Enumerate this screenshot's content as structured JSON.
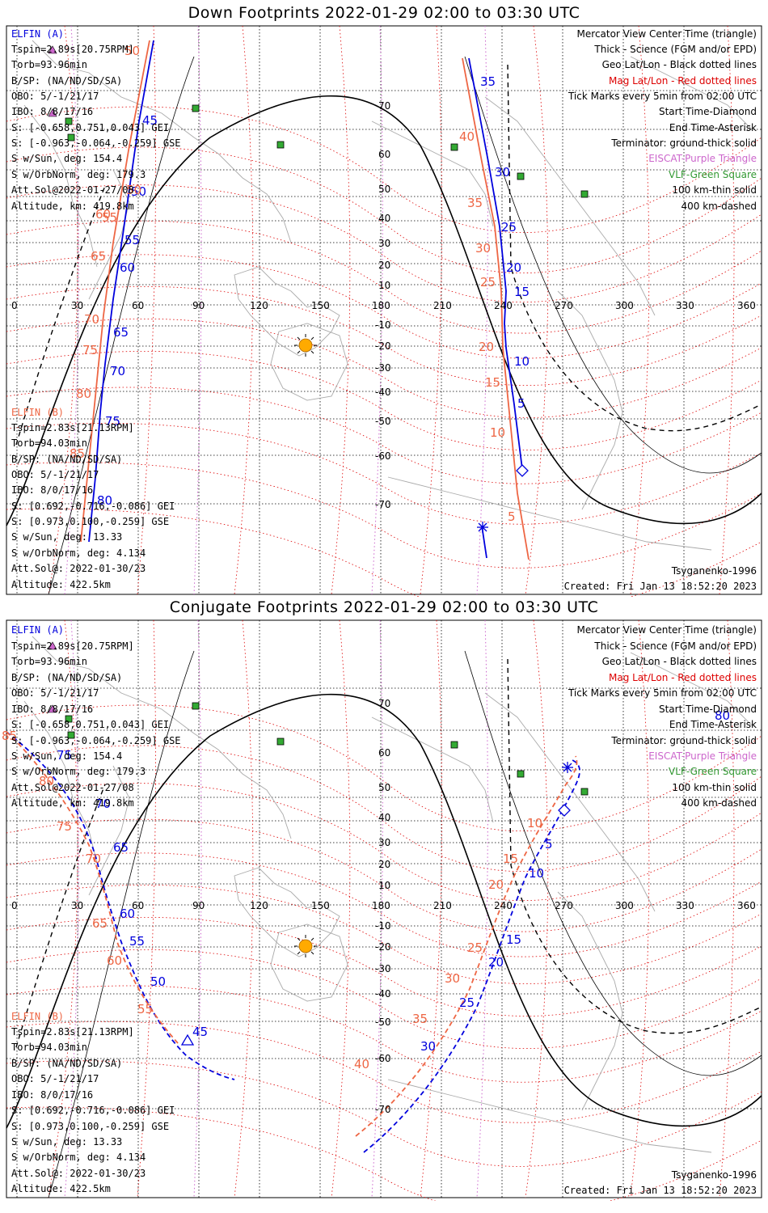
{
  "colors": {
    "elfin_a": "#0000dd",
    "elfin_b": "#ee6644",
    "mag_grid": "#dd0000",
    "geo_grid": "#000000",
    "eiscat": "#cc66cc",
    "vlf": "#339933",
    "sun": "#ffaa00",
    "coast": "#aaaaaa"
  },
  "panels": [
    {
      "title": "Down Footprints 2022-01-29 02:00 to 03:30 UTC",
      "elfin_a": {
        "name": "ELFIN (A)",
        "lines": [
          "Tspin=2.89s[20.75RPM]",
          "Torb=93.96min",
          "B/SP: (NA/ND/SD/SA)",
          "OBO: 5/-1/21/17",
          "IBO: 8/8/17/16",
          "S: [-0.658,0.751,0.043] GEI",
          "S: [-0.963,-0.064,-0.259] GSE",
          "S w/Sun, deg: 154.4",
          "S w/OrbNorm, deg: 179.3",
          "Att.Sol@2022-01-27/08",
          "Altitude, km: 419.8km"
        ]
      },
      "elfin_b": {
        "name": "ELFIN (B)",
        "lines": [
          "Tspin=2.83s[21.13RPM]",
          "Torb=94.03min",
          "B/SP: (NA/ND/SD/SA)",
          "OBO: 5/-1/21/17",
          "IBO: 8/0/17/16",
          "S: [0.692,-0.716,-0.086] GEI",
          "S: [0.973,0.100,-0.259] GSE",
          "S w/Sun, deg: 13.33",
          "S w/OrbNorm, deg: 4.134",
          "Att.Sol@: 2022-01-30/23",
          "Altitude: 422.5km"
        ]
      },
      "legend": [
        "Mercator View Center Time (triangle)",
        "Thick - Science (FGM and/or EPD)",
        "Geo Lat/Lon - Black dotted lines",
        "Mag Lat/Lon - Red dotted lines",
        "Tick Marks every 5min from 02:00 UTC",
        "Start Time-Diamond",
        "End Time-Asterisk",
        "Terminator: ground-thick solid",
        "EISCAT-Purple Triangle",
        "VLF-Green Square",
        "100 km-thin solid",
        "400 km-dashed"
      ],
      "model": "Tsyganenko-1996",
      "created": "Created: Fri Jan 13 18:52:20 2023",
      "track_a_labels": [
        "35",
        "30",
        "25",
        "20",
        "15",
        "10",
        "5",
        "45",
        "50",
        "55",
        "60",
        "65",
        "70",
        "75",
        "80"
      ],
      "track_b_labels": [
        "40",
        "35",
        "30",
        "25",
        "20",
        "15",
        "10",
        "5",
        "50",
        "55",
        "60",
        "65",
        "70",
        "75",
        "80",
        "85"
      ]
    },
    {
      "title": "Conjugate Footprints 2022-01-29 02:00 to 03:30 UTC",
      "elfin_a": {
        "name": "ELFIN (A)",
        "lines": [
          "Tspin=2.89s[20.75RPM]",
          "Torb=93.96min",
          "B/SP: (NA/ND/SD/SA)",
          "OBO: 5/-1/21/17",
          "IBO: 8/8/17/16",
          "S: [-0.658,0.751,0.043] GEI",
          "S: [-0.963,-0.064,-0.259] GSE",
          "S w/Sun, deg: 154.4",
          "S w/OrbNorm, deg: 179.3",
          "Att.Sol@2022-01-27/08",
          "Altitude, km: 419.8km"
        ]
      },
      "elfin_b": {
        "name": "ELFIN (B)",
        "lines": [
          "Tspin=2.83s[21.13RPM]",
          "Torb=94.03min",
          "B/SP: (NA/ND/SD/SA)",
          "OBO: 5/-1/21/17",
          "IBO: 8/0/17/16",
          "S: [0.692,-0.716,-0.086] GEI",
          "S: [0.973,0.100,-0.259] GSE",
          "S w/Sun, deg: 13.33",
          "S w/OrbNorm, deg: 4.134",
          "Att.Sol@: 2022-01-30/23",
          "Altitude: 422.5km"
        ]
      },
      "legend": [
        "Mercator View Center Time (triangle)",
        "Thick - Science (FGM and/or EPD)",
        "Geo Lat/Lon - Black dotted lines",
        "Mag Lat/Lon - Red dotted lines",
        "Tick Marks every 5min from 02:00 UTC",
        "Start Time-Diamond",
        "End Time-Asterisk",
        "Terminator: ground-thick solid",
        "EISCAT-Purple Triangle",
        "VLF-Green Square",
        "100 km-thin solid",
        "400 km-dashed"
      ],
      "model": "Tsyganenko-1996",
      "created": "Created: Fri Jan 13 18:52:20 2023"
    }
  ],
  "lon_ticks": [
    "0",
    "30",
    "60",
    "90",
    "120",
    "150",
    "180",
    "210",
    "240",
    "270",
    "300",
    "330",
    "360"
  ],
  "lat_ticks": [
    "70",
    "60",
    "50",
    "40",
    "30",
    "20",
    "10",
    "-10",
    "-20",
    "-30",
    "-40",
    "-50",
    "-60",
    "-70"
  ],
  "conj_a_labels": [
    "80",
    "5",
    "10",
    "15",
    "20",
    "25",
    "30",
    "45",
    "50",
    "55",
    "60",
    "65",
    "70",
    "75"
  ],
  "conj_b_labels": [
    "10",
    "15",
    "20",
    "25",
    "30",
    "35",
    "40",
    "55",
    "60",
    "65",
    "70",
    "75",
    "80",
    "85"
  ]
}
